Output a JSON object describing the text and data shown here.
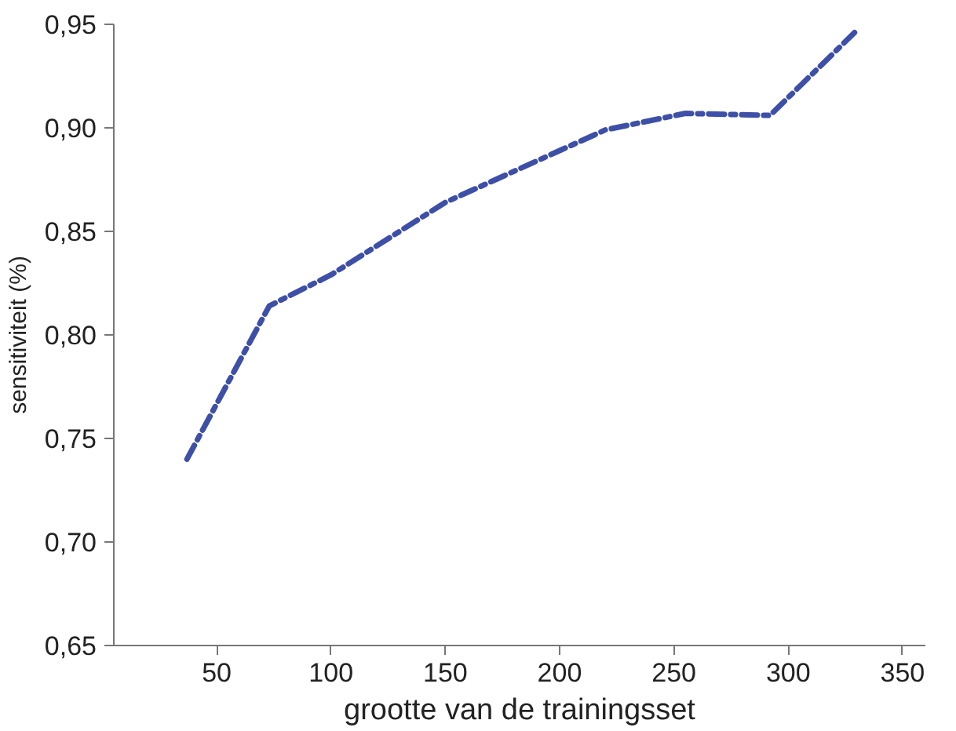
{
  "chart_data": {
    "type": "line",
    "xlabel": "grootte van de trainingsset",
    "ylabel": "sensitiviteit (%)",
    "xlim": [
      5,
      360
    ],
    "xticks": [
      50,
      100,
      150,
      200,
      250,
      300,
      350
    ],
    "ylim": [
      0.65,
      0.95
    ],
    "yticks": [
      {
        "value": 0.65,
        "label": "0,65"
      },
      {
        "value": 0.7,
        "label": "0,70"
      },
      {
        "value": 0.75,
        "label": "0,75"
      },
      {
        "value": 0.8,
        "label": "0,80"
      },
      {
        "value": 0.85,
        "label": "0,85"
      },
      {
        "value": 0.9,
        "label": "0,90"
      },
      {
        "value": 0.95,
        "label": "0,95"
      }
    ],
    "grid": false,
    "line_style": "dashed",
    "series": [
      {
        "color": "#3d4fa6",
        "x": [
          37,
          73,
          100,
          150,
          200,
          220,
          255,
          292,
          329
        ],
        "values": [
          0.74,
          0.814,
          0.829,
          0.864,
          0.889,
          0.899,
          0.907,
          0.906,
          0.946
        ]
      }
    ]
  }
}
